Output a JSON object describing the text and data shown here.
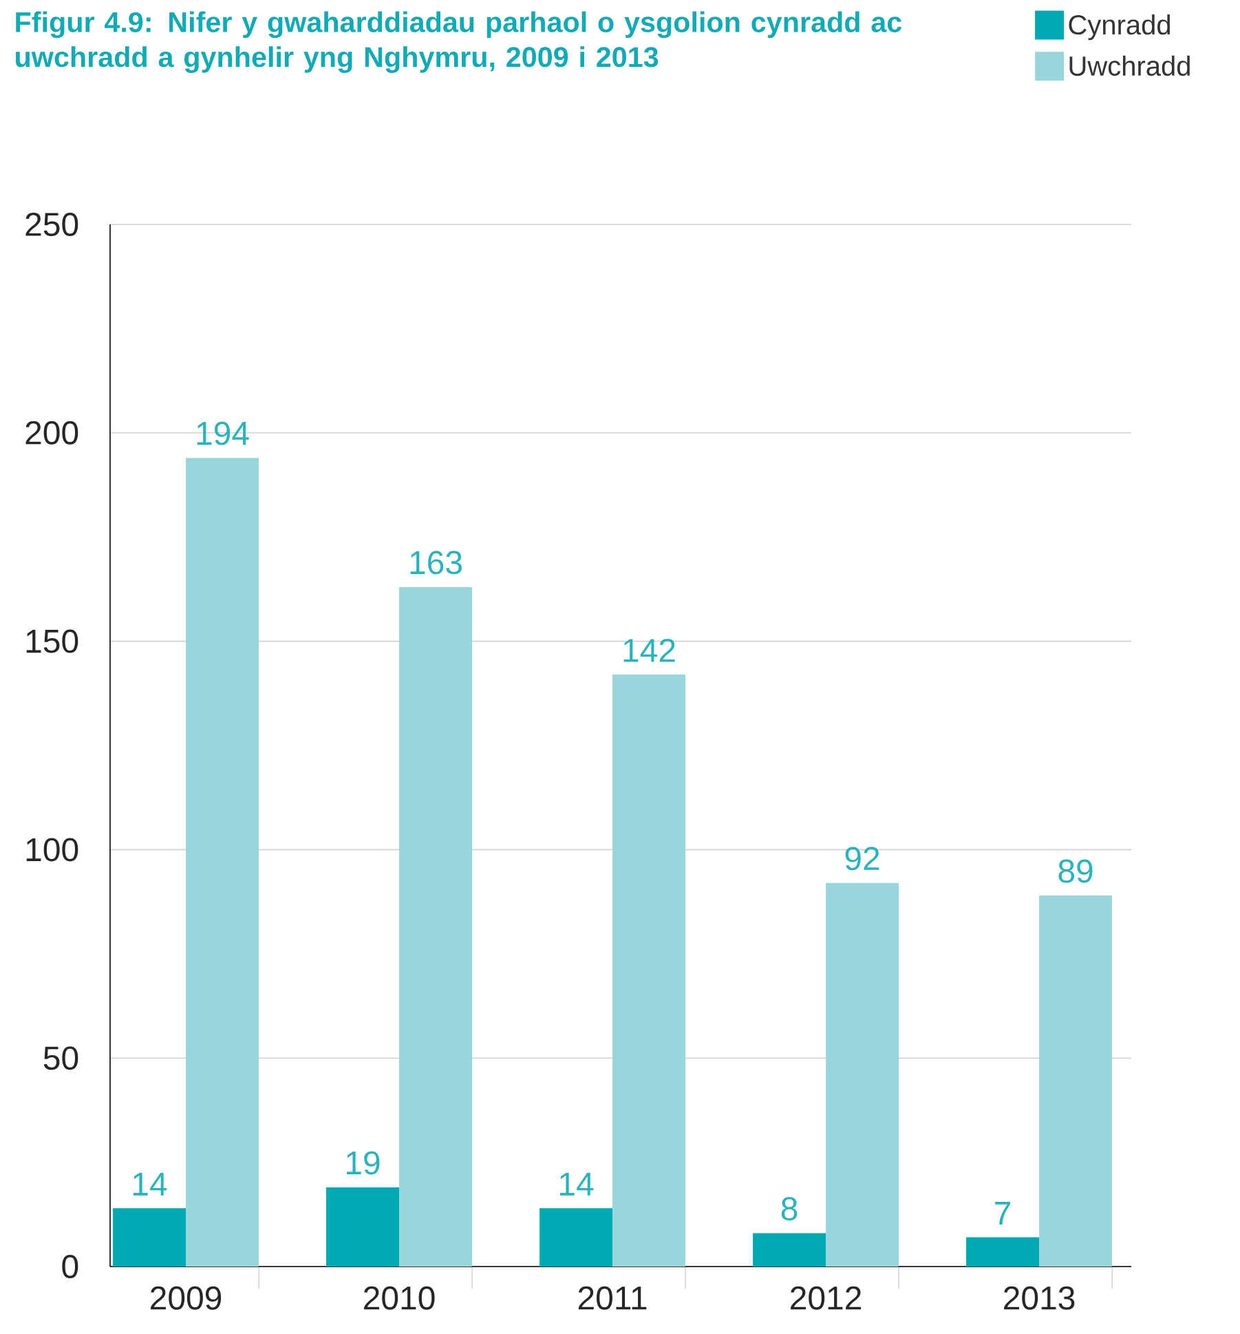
{
  "chart_data": {
    "type": "bar",
    "title": "Ffigur 4.9: Nifer y gwaharddiadau parhaol o ysgolion cynradd ac uwchradd a gynhelir yng Nghymru, 2009 i 2013",
    "categories": [
      "2009",
      "2010",
      "2011",
      "2012",
      "2013"
    ],
    "series": [
      {
        "name": "Cynradd",
        "color": "#00aab5",
        "values": [
          14,
          19,
          14,
          8,
          7
        ]
      },
      {
        "name": "Uwchradd",
        "color": "#98d6dc",
        "values": [
          194,
          163,
          142,
          92,
          89
        ]
      }
    ],
    "ylim": [
      0,
      250
    ],
    "yticks": [
      0,
      50,
      100,
      150,
      200,
      250
    ],
    "grid": "y",
    "legend": "top right",
    "data_labels": true
  }
}
